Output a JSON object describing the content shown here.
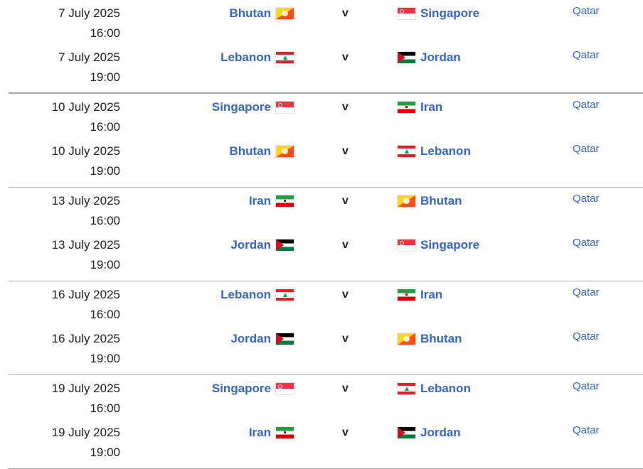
{
  "matches": [
    {
      "date": "7 July 2025",
      "time": "16:00",
      "home": "Bhutan",
      "away": "Singapore",
      "vs": "v",
      "venue": "Qatar"
    },
    {
      "date": "7 July 2025",
      "time": "19:00",
      "home": "Lebanon",
      "away": "Jordan",
      "vs": "v",
      "venue": "Qatar"
    },
    {
      "date": "10 July 2025",
      "time": "16:00",
      "home": "Singapore",
      "away": "Iran",
      "vs": "v",
      "venue": "Qatar"
    },
    {
      "date": "10 July 2025",
      "time": "19:00",
      "home": "Bhutan",
      "away": "Lebanon",
      "vs": "v",
      "venue": "Qatar"
    },
    {
      "date": "13 July 2025",
      "time": "16:00",
      "home": "Iran",
      "away": "Bhutan",
      "vs": "v",
      "venue": "Qatar"
    },
    {
      "date": "13 July 2025",
      "time": "19:00",
      "home": "Jordan",
      "away": "Singapore",
      "vs": "v",
      "venue": "Qatar"
    },
    {
      "date": "16 July 2025",
      "time": "16:00",
      "home": "Lebanon",
      "away": "Iran",
      "vs": "v",
      "venue": "Qatar"
    },
    {
      "date": "16 July 2025",
      "time": "19:00",
      "home": "Jordan",
      "away": "Bhutan",
      "vs": "v",
      "venue": "Qatar"
    },
    {
      "date": "19 July 2025",
      "time": "16:00",
      "home": "Singapore",
      "away": "Lebanon",
      "vs": "v",
      "venue": "Qatar"
    },
    {
      "date": "19 July 2025",
      "time": "19:00",
      "home": "Iran",
      "away": "Jordan",
      "vs": "v",
      "venue": "Qatar"
    }
  ],
  "colors": {
    "link": "#3366cc",
    "text": "#202122",
    "divider": "#a2a9b1"
  }
}
